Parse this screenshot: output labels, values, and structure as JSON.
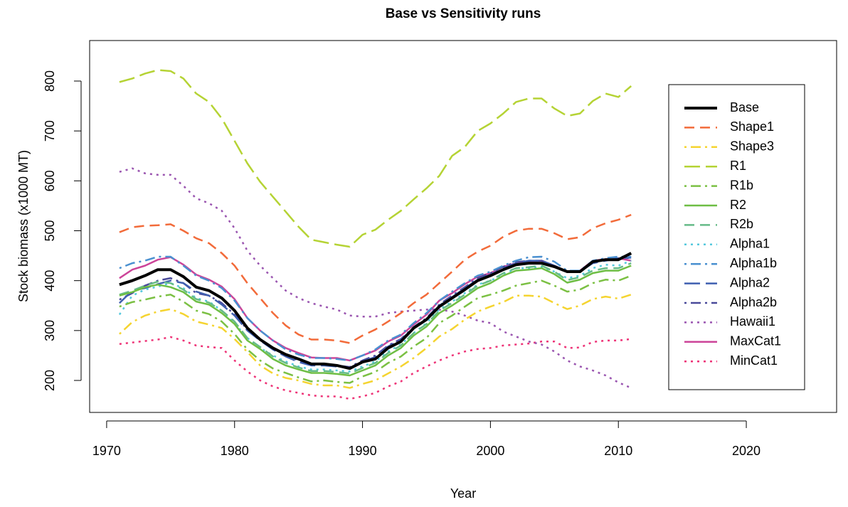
{
  "chart_data": {
    "type": "line",
    "title": "Base vs Sensitivity runs",
    "xlabel": "Year",
    "ylabel": "Stock biomass (x1000 MT)",
    "x": [
      1971,
      1972,
      1973,
      1974,
      1975,
      1976,
      1977,
      1978,
      1979,
      1980,
      1981,
      1982,
      1983,
      1984,
      1985,
      1986,
      1987,
      1988,
      1989,
      1990,
      1991,
      1992,
      1993,
      1994,
      1995,
      1996,
      1997,
      1998,
      1999,
      2000,
      2001,
      2002,
      2003,
      2004,
      2005,
      2006,
      2007,
      2008,
      2009,
      2010,
      2011
    ],
    "xlim": [
      1968.67,
      2027.06
    ],
    "xticks": [
      1970,
      1980,
      1990,
      2000,
      2010,
      2020
    ],
    "ylim": [
      135.9,
      881.2
    ],
    "yticks": [
      200,
      300,
      400,
      500,
      600,
      700,
      800
    ],
    "series": [
      {
        "name": "Base",
        "color": "#000000",
        "linestyle": "solid",
        "linewidth": 4,
        "values": [
          392,
          400,
          410,
          422,
          422,
          408,
          387,
          380,
          365,
          340,
          305,
          282,
          265,
          252,
          243,
          233,
          233,
          230,
          224,
          237,
          243,
          265,
          278,
          305,
          322,
          348,
          365,
          382,
          400,
          410,
          422,
          432,
          435,
          435,
          428,
          418,
          418,
          438,
          442,
          442,
          455
        ]
      },
      {
        "name": "Shape1",
        "color": "#f26b3a",
        "linestyle": "dashed",
        "linewidth": 2.5,
        "values": [
          497,
          507,
          510,
          511,
          513,
          500,
          485,
          475,
          455,
          430,
          395,
          365,
          335,
          310,
          292,
          282,
          282,
          280,
          275,
          290,
          302,
          318,
          335,
          355,
          372,
          395,
          418,
          442,
          458,
          470,
          488,
          500,
          504,
          504,
          495,
          483,
          487,
          505,
          515,
          522,
          532
        ]
      },
      {
        "name": "Shape3",
        "color": "#f5d430",
        "linestyle": "dashdot",
        "linewidth": 2.5,
        "values": [
          293,
          317,
          330,
          338,
          343,
          333,
          318,
          312,
          305,
          283,
          257,
          230,
          214,
          205,
          200,
          193,
          190,
          190,
          185,
          193,
          200,
          214,
          228,
          245,
          265,
          288,
          303,
          322,
          338,
          348,
          357,
          370,
          370,
          368,
          355,
          343,
          350,
          363,
          368,
          364,
          372
        ]
      },
      {
        "name": "R1",
        "color": "#b5d334",
        "linestyle": "longdash",
        "linewidth": 2.5,
        "values": [
          798,
          805,
          815,
          822,
          820,
          805,
          775,
          758,
          725,
          680,
          635,
          598,
          568,
          538,
          508,
          482,
          477,
          472,
          468,
          492,
          502,
          522,
          540,
          563,
          585,
          610,
          650,
          668,
          700,
          715,
          735,
          758,
          765,
          765,
          745,
          730,
          735,
          760,
          775,
          768,
          790
        ]
      },
      {
        "name": "R1b",
        "color": "#7bc043",
        "linestyle": "dashdot",
        "linewidth": 2.5,
        "values": [
          348,
          357,
          362,
          368,
          372,
          358,
          340,
          333,
          318,
          293,
          262,
          240,
          224,
          215,
          206,
          198,
          200,
          197,
          195,
          208,
          217,
          235,
          248,
          268,
          285,
          315,
          330,
          348,
          365,
          372,
          380,
          390,
          395,
          400,
          390,
          378,
          382,
          395,
          402,
          400,
          410
        ]
      },
      {
        "name": "R2",
        "color": "#6ebe44",
        "linestyle": "solid",
        "linewidth": 2.5,
        "values": [
          370,
          377,
          387,
          392,
          387,
          377,
          358,
          352,
          335,
          313,
          280,
          263,
          243,
          230,
          222,
          215,
          215,
          213,
          210,
          220,
          230,
          250,
          265,
          290,
          308,
          335,
          350,
          367,
          385,
          395,
          410,
          420,
          422,
          425,
          413,
          396,
          402,
          415,
          420,
          420,
          430
        ]
      },
      {
        "name": "R2b",
        "color": "#66bb88",
        "linestyle": "dashed",
        "linewidth": 2.5,
        "values": [
          372,
          380,
          390,
          398,
          395,
          382,
          363,
          356,
          340,
          318,
          285,
          267,
          248,
          235,
          226,
          219,
          219,
          217,
          214,
          225,
          235,
          255,
          270,
          295,
          313,
          340,
          355,
          372,
          390,
          400,
          415,
          425,
          427,
          430,
          418,
          401,
          407,
          420,
          425,
          425,
          435
        ]
      },
      {
        "name": "Alpha1",
        "color": "#55c8dd",
        "linestyle": "dotted",
        "linewidth": 2.5,
        "values": [
          332,
          370,
          382,
          388,
          395,
          385,
          365,
          358,
          340,
          315,
          285,
          265,
          250,
          238,
          228,
          222,
          222,
          220,
          218,
          228,
          238,
          258,
          272,
          295,
          315,
          342,
          358,
          375,
          392,
          400,
          412,
          425,
          425,
          428,
          418,
          405,
          410,
          425,
          432,
          430,
          440
        ]
      },
      {
        "name": "Alpha1b",
        "color": "#4a90d0",
        "linestyle": "dashdot",
        "linewidth": 2.5,
        "values": [
          425,
          435,
          440,
          448,
          448,
          430,
          410,
          400,
          385,
          360,
          325,
          300,
          280,
          262,
          252,
          245,
          245,
          243,
          240,
          250,
          262,
          280,
          292,
          315,
          335,
          360,
          378,
          395,
          410,
          418,
          430,
          440,
          447,
          448,
          438,
          420,
          420,
          440,
          445,
          448,
          448
        ]
      },
      {
        "name": "Alpha2",
        "color": "#3f5fb0",
        "linestyle": "longdash",
        "linewidth": 2.5,
        "values": [
          355,
          380,
          385,
          393,
          400,
          395,
          378,
          370,
          352,
          330,
          300,
          280,
          262,
          248,
          237,
          230,
          230,
          228,
          225,
          238,
          247,
          268,
          282,
          305,
          322,
          350,
          367,
          385,
          402,
          412,
          425,
          435,
          440,
          440,
          430,
          418,
          418,
          435,
          440,
          445,
          446
        ]
      },
      {
        "name": "Alpha2b",
        "color": "#4a4a9a",
        "linestyle": "dashdot",
        "linewidth": 2.5,
        "values": [
          362,
          375,
          390,
          400,
          405,
          395,
          375,
          370,
          355,
          332,
          302,
          282,
          265,
          250,
          240,
          232,
          232,
          230,
          227,
          240,
          250,
          270,
          283,
          307,
          325,
          352,
          370,
          387,
          405,
          415,
          428,
          437,
          440,
          440,
          430,
          418,
          418,
          436,
          442,
          444,
          446
        ]
      },
      {
        "name": "Hawaii1",
        "color": "#9a55b0",
        "linestyle": "dotted",
        "linewidth": 2.5,
        "values": [
          618,
          625,
          615,
          612,
          612,
          590,
          565,
          555,
          540,
          505,
          460,
          430,
          405,
          380,
          365,
          355,
          348,
          342,
          330,
          328,
          328,
          335,
          338,
          340,
          342,
          342,
          338,
          330,
          320,
          315,
          298,
          288,
          278,
          272,
          258,
          240,
          228,
          220,
          210,
          196,
          185
        ]
      },
      {
        "name": "MaxCat1",
        "color": "#cc4499",
        "linestyle": "solid",
        "linewidth": 2.5,
        "values": [
          405,
          422,
          430,
          442,
          447,
          432,
          412,
          402,
          388,
          363,
          325,
          300,
          280,
          265,
          255,
          246,
          245,
          245,
          240,
          250,
          260,
          278,
          290,
          312,
          332,
          360,
          375,
          393,
          408,
          415,
          428,
          435,
          438,
          440,
          430,
          418,
          420,
          440,
          443,
          445,
          440
        ]
      },
      {
        "name": "MinCat1",
        "color": "#ee3377",
        "linestyle": "dotted",
        "linewidth": 2.5,
        "values": [
          273,
          276,
          279,
          282,
          287,
          280,
          270,
          267,
          265,
          240,
          218,
          200,
          188,
          180,
          175,
          170,
          168,
          168,
          163,
          168,
          175,
          188,
          198,
          215,
          228,
          240,
          250,
          258,
          263,
          265,
          270,
          272,
          274,
          278,
          278,
          265,
          266,
          277,
          280,
          280,
          283
        ]
      }
    ]
  }
}
